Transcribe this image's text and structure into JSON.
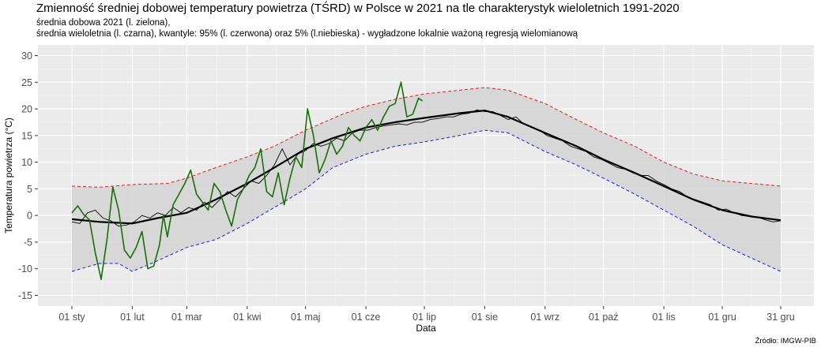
{
  "header": {
    "title": "Zmienność średniej dobowej temperatury powietrza (TŚRD) w Polsce w 2021 na tle charakterystyk wieloletnich 1991-2020",
    "subtitle_1": "średnia dobowa 2021 (l. zielona),",
    "subtitle_2": "średnia wieloletnia (l. czarna), kwantyle: 95% (l. czerwona) oraz 5% (l.niebieska) - wygładzone lokalnie ważoną regresją wielomianową"
  },
  "footer": {
    "source": "Źródło: IMGW-PIB"
  },
  "colors": {
    "panel_bg": "#ebebeb",
    "grid_major": "#ffffff",
    "band": "#d3d3d3",
    "q95": "#e41a1c",
    "q05": "#1a1ae4",
    "mean": "#000000",
    "daily_2021": "#1a6e0a"
  },
  "chart_data": {
    "type": "line",
    "xlabel": "Data",
    "ylabel": "Temperatura powietrza (°C)",
    "ylim": [
      -17,
      32
    ],
    "y_ticks": [
      -15,
      -10,
      -5,
      0,
      5,
      10,
      15,
      20,
      25,
      30
    ],
    "x_ticks": [
      {
        "day": 1,
        "label": "01 sty"
      },
      {
        "day": 32,
        "label": "01 lut"
      },
      {
        "day": 60,
        "label": "01 mar"
      },
      {
        "day": 91,
        "label": "01 kwi"
      },
      {
        "day": 121,
        "label": "01 maj"
      },
      {
        "day": 152,
        "label": "01 cze"
      },
      {
        "day": 182,
        "label": "01 lip"
      },
      {
        "day": 213,
        "label": "01 sie"
      },
      {
        "day": 244,
        "label": "01 wrz"
      },
      {
        "day": 274,
        "label": "01 paź"
      },
      {
        "day": 305,
        "label": "01 lis"
      },
      {
        "day": 335,
        "label": "01 gru"
      },
      {
        "day": 365,
        "label": "31 gru"
      }
    ],
    "x_unit": "day of year",
    "grid": true,
    "series": [
      {
        "key": "q95",
        "line": "dashed",
        "x": [
          1,
          15,
          32,
          50,
          60,
          75,
          91,
          105,
          121,
          140,
          152,
          167,
          182,
          200,
          213,
          225,
          244,
          260,
          274,
          290,
          305,
          320,
          335,
          350,
          365
        ],
        "y": [
          5.5,
          5.3,
          5.8,
          6.0,
          7.0,
          9.0,
          11.0,
          13.0,
          16.0,
          19.0,
          20.5,
          21.8,
          22.8,
          23.5,
          24.0,
          23.5,
          21.0,
          18.0,
          15.5,
          13.0,
          10.0,
          7.8,
          6.5,
          6.0,
          5.5
        ]
      },
      {
        "key": "q05",
        "line": "dashed",
        "x": [
          1,
          15,
          25,
          32,
          45,
          60,
          75,
          91,
          105,
          121,
          135,
          152,
          167,
          182,
          200,
          213,
          225,
          244,
          260,
          274,
          290,
          305,
          320,
          335,
          350,
          365
        ],
        "y": [
          -10.5,
          -9.0,
          -9.0,
          -10.5,
          -8.5,
          -6.0,
          -4.5,
          -1.5,
          1.5,
          5.0,
          9.0,
          11.5,
          13.0,
          13.8,
          15.0,
          16.0,
          15.5,
          12.0,
          9.5,
          7.0,
          4.0,
          1.0,
          -2.0,
          -5.5,
          -8.0,
          -10.5
        ]
      },
      {
        "key": "mean_smooth",
        "line": "solid-thick",
        "x": [
          1,
          15,
          32,
          45,
          60,
          75,
          91,
          105,
          121,
          135,
          152,
          167,
          182,
          200,
          213,
          225,
          244,
          260,
          274,
          290,
          305,
          320,
          335,
          350,
          365
        ],
        "y": [
          -0.7,
          -1.2,
          -1.5,
          -0.5,
          0.5,
          3.0,
          6.0,
          9.0,
          12.5,
          14.5,
          16.5,
          17.5,
          18.3,
          19.2,
          19.7,
          18.5,
          15.5,
          13.0,
          10.5,
          8.0,
          5.5,
          3.0,
          1.0,
          -0.2,
          -0.9
        ]
      },
      {
        "key": "mean_raw",
        "line": "solid-thin",
        "x": [
          1,
          5,
          9,
          13,
          17,
          21,
          25,
          29,
          33,
          37,
          41,
          45,
          49,
          53,
          57,
          61,
          65,
          69,
          73,
          77,
          81,
          85,
          89,
          93,
          97,
          101,
          105,
          109,
          113,
          117,
          121,
          125,
          129,
          133,
          137,
          141,
          145,
          149,
          153,
          157,
          161,
          165,
          169,
          173,
          177,
          181,
          185,
          189,
          193,
          197,
          201,
          205,
          209,
          213,
          217,
          221,
          225,
          229,
          233,
          237,
          241,
          245,
          249,
          253,
          257,
          261,
          265,
          269,
          273,
          277,
          281,
          285,
          289,
          293,
          297,
          301,
          305,
          309,
          313,
          317,
          321,
          325,
          329,
          333,
          337,
          341,
          345,
          349,
          353,
          357,
          361,
          365
        ],
        "y": [
          -1.2,
          -1.5,
          0.5,
          1.0,
          -0.5,
          -1.0,
          -2.0,
          -1.8,
          -1.2,
          0.0,
          -0.5,
          0.5,
          0.0,
          1.5,
          0.5,
          1.5,
          1.0,
          2.5,
          1.5,
          3.0,
          4.5,
          3.5,
          5.0,
          6.5,
          6.0,
          7.5,
          9.5,
          12.5,
          9.5,
          11.5,
          12.2,
          13.5,
          13.0,
          13.5,
          14.5,
          14.0,
          15.5,
          16.0,
          16.0,
          16.5,
          16.8,
          17.0,
          17.2,
          17.0,
          17.5,
          17.5,
          18.0,
          18.2,
          18.5,
          18.5,
          19.0,
          19.2,
          19.8,
          19.5,
          19.5,
          18.8,
          18.0,
          18.5,
          17.2,
          16.5,
          16.0,
          15.0,
          14.5,
          14.0,
          13.0,
          12.5,
          12.0,
          11.0,
          10.5,
          9.8,
          9.0,
          8.7,
          8.0,
          7.5,
          7.5,
          6.5,
          5.8,
          5.0,
          4.5,
          3.5,
          3.0,
          2.5,
          2.0,
          1.0,
          1.2,
          0.5,
          0.0,
          -0.2,
          -0.3,
          -0.8,
          -1.2,
          -1.0
        ]
      },
      {
        "key": "daily_2021",
        "line": "solid",
        "x": [
          1,
          4,
          7,
          10,
          13,
          16,
          19,
          22,
          25,
          28,
          31,
          34,
          37,
          40,
          43,
          46,
          48,
          50,
          53,
          56,
          59,
          62,
          65,
          68,
          71,
          74,
          77,
          80,
          83,
          86,
          89,
          92,
          95,
          98,
          101,
          104,
          107,
          110,
          113,
          116,
          119,
          122,
          125,
          128,
          131,
          134,
          137,
          140,
          143,
          146,
          149,
          152,
          155,
          158,
          161,
          164,
          167,
          170,
          171,
          173,
          176,
          179,
          181
        ],
        "y": [
          0.5,
          1.8,
          0.2,
          -0.8,
          -7.0,
          -12.0,
          -4.5,
          5.3,
          1.0,
          -6.5,
          -8.0,
          -6.0,
          -3.0,
          -10.0,
          -9.5,
          -5.5,
          0.0,
          -4.0,
          2.0,
          4.0,
          6.0,
          8.5,
          4.0,
          2.5,
          1.0,
          6.0,
          4.5,
          1.0,
          -2.0,
          3.0,
          5.0,
          7.5,
          9.0,
          12.5,
          4.5,
          3.5,
          8.0,
          2.0,
          7.0,
          11.0,
          9.0,
          20.0,
          15.0,
          8.0,
          10.5,
          14.0,
          11.5,
          13.0,
          16.5,
          15.0,
          14.0,
          16.5,
          18.0,
          16.0,
          18.5,
          20.5,
          21.0,
          25.0,
          23.0,
          18.5,
          19.0,
          22.0,
          21.5
        ]
      }
    ]
  }
}
